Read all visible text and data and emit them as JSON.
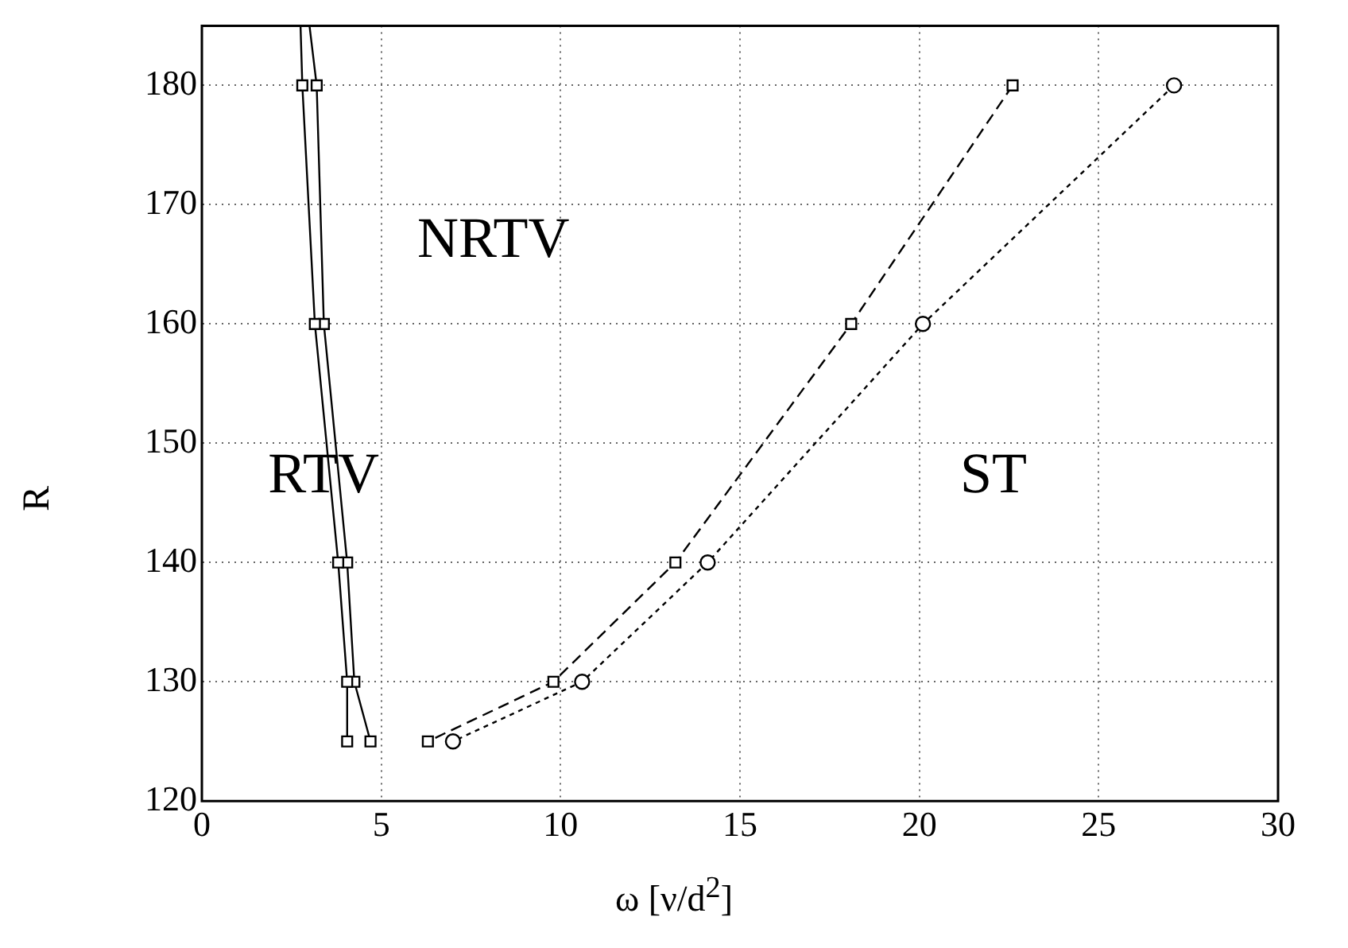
{
  "chart_data": {
    "type": "line",
    "xlabel": "ω [ν/d$^{2}$]",
    "ylabel": "R",
    "xlim": [
      0,
      30
    ],
    "xticks": [
      0,
      5,
      10,
      15,
      20,
      25,
      30
    ],
    "ylim": [
      120,
      185
    ],
    "yticks": [
      120,
      130,
      140,
      150,
      160,
      170,
      180
    ],
    "grid": true,
    "legend": false,
    "series": [
      {
        "color": "#000000",
        "marker": "square",
        "line_style": "solid",
        "x": [
          2.75,
          2.8,
          3.15,
          3.8,
          4.05,
          4.05
        ],
        "values": [
          185,
          180,
          160,
          140,
          130,
          125
        ]
      },
      {
        "color": "#000000",
        "marker": "square",
        "line_style": "solid",
        "x": [
          3.0,
          3.2,
          3.4,
          4.05,
          4.25,
          4.7
        ],
        "values": [
          185,
          180,
          160,
          140,
          130,
          125
        ]
      },
      {
        "color": "#000000",
        "marker": "square",
        "line_style": "dashed",
        "x": [
          22.6,
          18.1,
          13.2,
          9.8,
          6.3
        ],
        "values": [
          180,
          160,
          140,
          130,
          125
        ]
      },
      {
        "color": "#000000",
        "marker": "circle",
        "line_style": "dotted",
        "x": [
          27.1,
          20.1,
          14.1,
          10.6,
          7.0
        ],
        "values": [
          180,
          160,
          140,
          130,
          125
        ]
      }
    ],
    "annotations": [
      "NRTV",
      "RTV",
      "ST"
    ]
  }
}
